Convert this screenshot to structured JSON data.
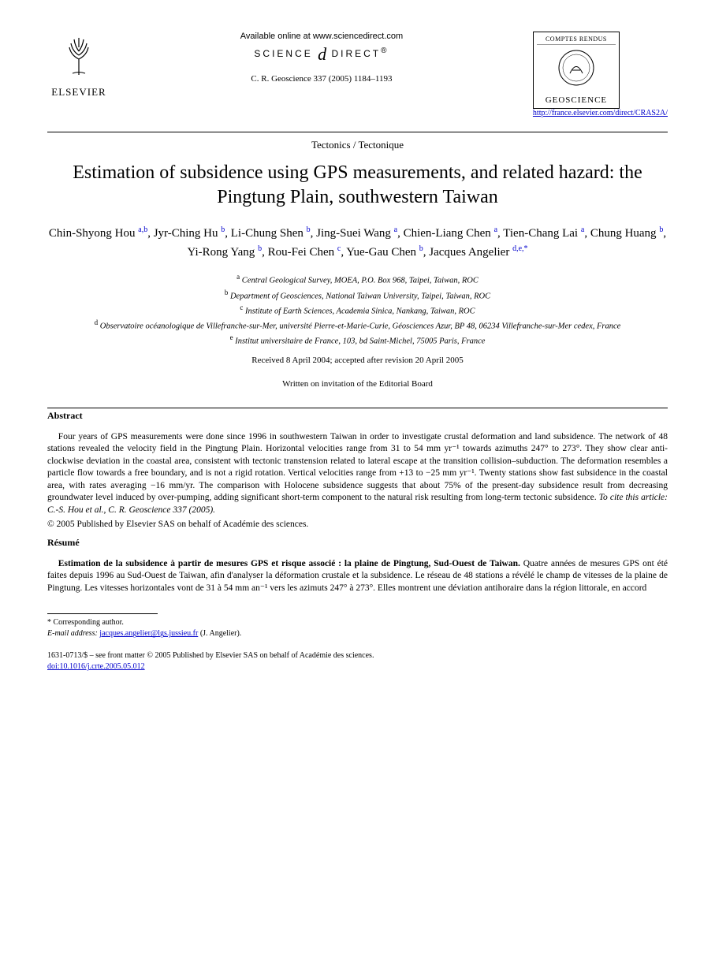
{
  "header": {
    "publisher_name": "ELSEVIER",
    "online_text": "Available online at www.sciencedirect.com",
    "science_direct": "SCIENCE DIRECT®",
    "journal_ref": "C. R. Geoscience 337 (2005) 1184–1193",
    "badge_top": "COMPTES RENDUS",
    "badge_name": "GEOSCIENCE",
    "journal_url": "http://france.elsevier.com/direct/CRAS2A/"
  },
  "section_label": "Tectonics / Tectonique",
  "title": "Estimation of subsidence using GPS measurements, and related hazard: the Pingtung Plain, southwestern Taiwan",
  "authors_html": "Chin-Shyong Hou <sup>a,b</sup>, Jyr-Ching Hu <sup>b</sup>, Li-Chung Shen <sup>b</sup>, Jing-Suei Wang <sup>a</sup>, Chien-Liang Chen <sup>a</sup>, Tien-Chang Lai <sup>a</sup>, Chung Huang <sup>b</sup>, Yi-Rong Yang <sup>b</sup>, Rou-Fei Chen <sup>c</sup>, Yue-Gau Chen <sup>b</sup>, Jacques Angelier <sup>d,e,*</sup>",
  "affiliations": [
    "<sup>a</sup> Central Geological Survey, MOEA, P.O. Box 968, Taipei, Taiwan, ROC",
    "<sup>b</sup> Department of Geosciences, National Taiwan University, Taipei, Taiwan, ROC",
    "<sup>c</sup> Institute of Earth Sciences, Academia Sinica, Nankang, Taiwan, ROC",
    "<sup>d</sup> Observatoire océanologique de Villefranche-sur-Mer, université Pierre-et-Marie-Curie, Géosciences Azur, BP 48, 06234 Villefranche-sur-Mer cedex, France",
    "<sup>e</sup> Institut universitaire de France, 103, bd Saint-Michel, 75005 Paris, France"
  ],
  "dates": "Received 8 April 2004; accepted after revision 20 April 2005",
  "invitation": "Written on invitation of the Editorial Board",
  "abstract": {
    "heading": "Abstract",
    "body": "Four years of GPS measurements were done since 1996 in southwestern Taiwan in order to investigate crustal deformation and land subsidence. The network of 48 stations revealed the velocity field in the Pingtung Plain. Horizontal velocities range from 31 to 54 mm yr⁻¹ towards azimuths 247° to 273°. They show clear anti-clockwise deviation in the coastal area, consistent with tectonic transtension related to lateral escape at the transition collision–subduction. The deformation resembles a particle flow towards a free boundary, and is not a rigid rotation. Vertical velocities range from +13 to −25 mm yr⁻¹. Twenty stations show fast subsidence in the coastal area, with rates averaging −16 mm/yr. The comparison with Holocene subsidence suggests that about 75% of the present-day subsidence result from decreasing groundwater level induced by over-pumping, adding significant short-term component to the natural risk resulting from long-term tectonic subsidence.",
    "cite": "To cite this article: C.-S. Hou et al., C. R. Geoscience 337 (2005).",
    "copyright": "© 2005 Published by Elsevier SAS on behalf of Académie des sciences."
  },
  "resume": {
    "heading": "Résumé",
    "fr_title": "Estimation de la subsidence à partir de mesures GPS et risque associé : la plaine de Pingtung, Sud-Ouest de Taiwan.",
    "body": "Quatre années de mesures GPS ont été faites depuis 1996 au Sud-Ouest de Taiwan, afin d'analyser la déformation crustale et la subsidence. Le réseau de 48 stations a révélé le champ de vitesses de la plaine de Pingtung. Les vitesses horizontales vont de 31 à 54 mm an⁻¹ vers les azimuts 247° à 273°. Elles montrent une déviation antihoraire dans la région littorale, en accord"
  },
  "corresponding": {
    "label": "* Corresponding author.",
    "email_label": "E-mail address:",
    "email": "jacques.angelier@lgs.jussieu.fr",
    "email_name": "(J. Angelier)."
  },
  "footer": {
    "issn_line": "1631-0713/$ – see front matter © 2005 Published by Elsevier SAS on behalf of Académie des sciences.",
    "doi": "doi:10.1016/j.crte.2005.05.012"
  }
}
